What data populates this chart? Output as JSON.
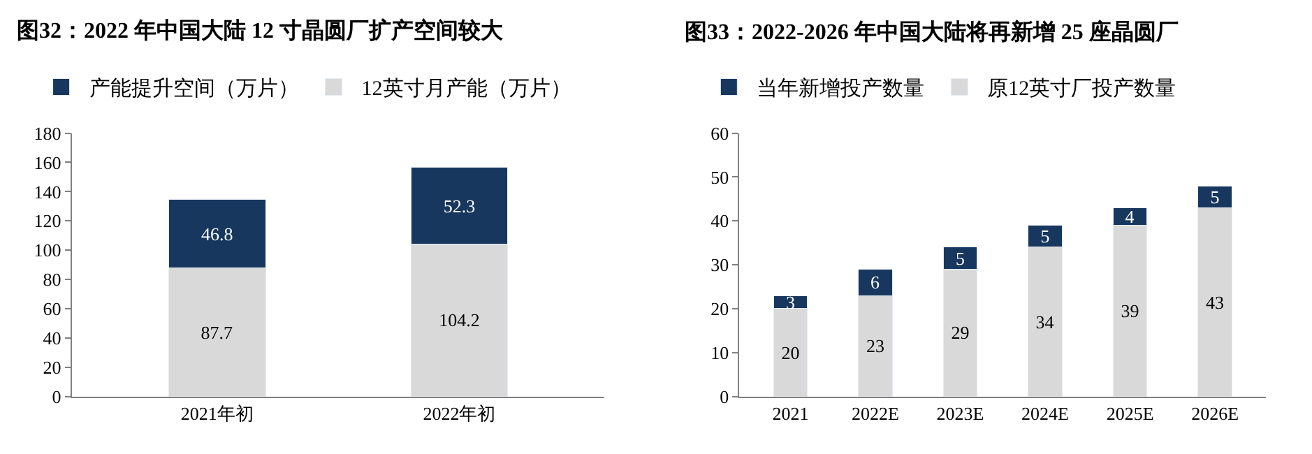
{
  "chart_data": [
    {
      "type": "bar",
      "title": "图32：2022 年中国大陆 12 寸晶圆厂扩产空间较大",
      "categories": [
        "2021年初",
        "2022年初"
      ],
      "stacked": true,
      "data_labels": true,
      "legend": "top left",
      "ylim": [
        0,
        180
      ],
      "yticks": [
        0,
        20,
        40,
        60,
        80,
        100,
        120,
        140,
        160,
        180
      ],
      "series": [
        {
          "name": "12英寸月产能（万片）",
          "color": "#d9d9d9",
          "values": [
            87.7,
            104.2
          ]
        },
        {
          "name": "产能提升空间（万片）",
          "color": "#17375e",
          "values": [
            46.8,
            52.3
          ]
        }
      ]
    },
    {
      "type": "bar",
      "title": "图33：2022-2026 年中国大陆将再新增 25 座晶圆厂",
      "categories": [
        "2021",
        "2022E",
        "2023E",
        "2024E",
        "2025E",
        "2026E"
      ],
      "stacked": true,
      "data_labels": true,
      "legend": "top left",
      "ylim": [
        0,
        60
      ],
      "yticks": [
        0,
        10,
        20,
        30,
        40,
        50,
        60
      ],
      "series": [
        {
          "name": "原12英寸厂投产数量",
          "color": "#d9d9d9",
          "values": [
            20,
            23,
            29,
            34,
            39,
            43
          ]
        },
        {
          "name": "当年新增投产数量",
          "color": "#17375e",
          "values": [
            3,
            6,
            5,
            5,
            4,
            5
          ]
        }
      ]
    }
  ]
}
